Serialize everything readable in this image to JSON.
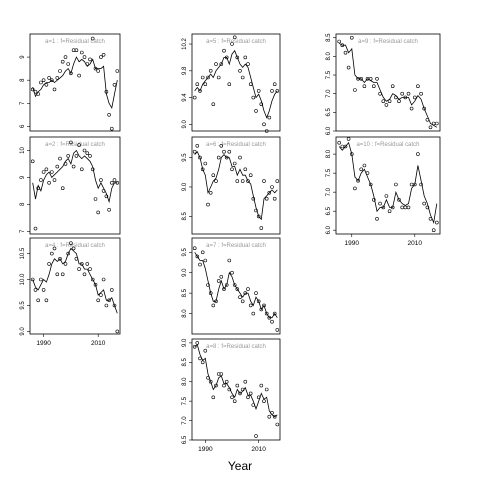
{
  "xlabel": "Year",
  "colors": {
    "line": "#000000",
    "frame": "#000000",
    "strip": "#999999"
  },
  "chart_data": {
    "type": "line",
    "xlabel": "Year",
    "xlim": [
      1985,
      2018
    ],
    "xticks": [
      1990,
      2010
    ],
    "panels": [
      {
        "label": "a=1  :  f=Residual catch",
        "ylim": [
          5.8,
          10.0
        ],
        "yticks": [
          6,
          7,
          8,
          9
        ],
        "x": [
          1986,
          1987,
          1988,
          1989,
          1990,
          1991,
          1992,
          1993,
          1994,
          1995,
          1996,
          1997,
          1998,
          1999,
          2000,
          2001,
          2002,
          2003,
          2004,
          2005,
          2006,
          2007,
          2008,
          2009,
          2010,
          2011,
          2012,
          2013,
          2014,
          2015,
          2016,
          2017
        ],
        "observed": [
          7.6,
          7.5,
          7.4,
          7.9,
          8.0,
          7.8,
          8.1,
          8.0,
          7.6,
          8.1,
          8.4,
          8.8,
          9.0,
          8.7,
          8.3,
          9.3,
          9.3,
          8.2,
          9.2,
          9.0,
          8.7,
          8.9,
          9.8,
          8.5,
          8.4,
          9.0,
          9.1,
          7.5,
          6.5,
          5.9,
          7.8,
          8.4
        ],
        "fitted": [
          7.7,
          7.3,
          7.5,
          7.6,
          7.8,
          7.9,
          7.9,
          8.0,
          7.9,
          8.0,
          8.1,
          8.2,
          8.4,
          8.5,
          8.3,
          8.7,
          9.0,
          8.8,
          8.9,
          8.8,
          8.6,
          8.7,
          8.9,
          8.5,
          8.5,
          8.5,
          8.6,
          7.4,
          7.0,
          6.8,
          7.4,
          8.0
        ]
      },
      {
        "label": "a=2  :  f=Residual catch",
        "ylim": [
          6.9,
          10.5
        ],
        "yticks": [
          7,
          8,
          9,
          10
        ],
        "x": [
          1986,
          1987,
          1988,
          1989,
          1990,
          1991,
          1992,
          1993,
          1994,
          1995,
          1996,
          1997,
          1998,
          1999,
          2000,
          2001,
          2002,
          2003,
          2004,
          2005,
          2006,
          2007,
          2008,
          2009,
          2010,
          2011,
          2012,
          2013,
          2014,
          2015,
          2016,
          2017
        ],
        "observed": [
          9.6,
          7.1,
          8.6,
          8.9,
          9.2,
          9.3,
          8.8,
          9.2,
          8.9,
          9.4,
          9.7,
          8.6,
          9.5,
          9.8,
          10.3,
          9.4,
          9.8,
          10.2,
          9.3,
          10.0,
          9.9,
          9.8,
          9.3,
          8.2,
          7.7,
          8.9,
          8.5,
          8.3,
          7.8,
          8.8,
          8.9,
          8.8
        ],
        "fitted": [
          8.8,
          8.2,
          8.7,
          8.5,
          8.9,
          9.1,
          9.2,
          9.0,
          9.1,
          9.2,
          9.3,
          9.4,
          9.6,
          9.7,
          9.5,
          9.9,
          10.0,
          9.8,
          9.7,
          9.8,
          9.7,
          9.6,
          9.4,
          8.9,
          8.6,
          8.8,
          8.6,
          8.4,
          8.1,
          8.6,
          8.8,
          8.8
        ]
      },
      {
        "label": "a=4  :  f=Residual catch",
        "ylim": [
          8.95,
          10.8
        ],
        "yticks": [
          9.0,
          9.5,
          10.0,
          10.5
        ],
        "x": [
          1986,
          1987,
          1988,
          1989,
          1990,
          1991,
          1992,
          1993,
          1994,
          1995,
          1996,
          1997,
          1998,
          1999,
          2000,
          2001,
          2002,
          2003,
          2004,
          2005,
          2006,
          2007,
          2008,
          2009,
          2010,
          2011,
          2012,
          2013,
          2014,
          2015,
          2016,
          2017
        ],
        "observed": [
          10.0,
          9.8,
          9.6,
          10.0,
          9.8,
          9.6,
          10.3,
          10.5,
          10.6,
          10.1,
          10.4,
          10.1,
          10.3,
          10.5,
          10.7,
          10.6,
          10.4,
          10.2,
          10.3,
          10.1,
          10.3,
          10.2,
          10.0,
          9.9,
          9.6,
          9.7,
          10.0,
          9.5,
          9.6,
          9.8,
          9.5,
          9.0
        ],
        "fitted": [
          10.0,
          9.85,
          9.8,
          9.9,
          10.0,
          9.95,
          10.1,
          10.3,
          10.4,
          10.35,
          10.4,
          10.3,
          10.35,
          10.5,
          10.6,
          10.55,
          10.5,
          10.3,
          10.3,
          10.2,
          10.2,
          10.1,
          10.0,
          9.9,
          9.7,
          9.75,
          9.8,
          9.6,
          9.6,
          9.65,
          9.5,
          9.35
        ]
      },
      {
        "label": "a=5  :  f=Residual catch",
        "ylim": [
          8.9,
          10.35
        ],
        "yticks": [
          9.0,
          9.4,
          9.8,
          10.2
        ],
        "x": [
          1986,
          1987,
          1988,
          1989,
          1990,
          1991,
          1992,
          1993,
          1994,
          1995,
          1996,
          1997,
          1998,
          1999,
          2000,
          2001,
          2002,
          2003,
          2004,
          2005,
          2006,
          2007,
          2008,
          2009,
          2010,
          2011,
          2012,
          2013,
          2014,
          2015,
          2016,
          2017
        ],
        "observed": [
          9.4,
          9.6,
          9.5,
          9.7,
          9.6,
          9.7,
          9.8,
          9.3,
          9.9,
          9.7,
          9.9,
          10.1,
          10.0,
          9.6,
          10.2,
          10.3,
          10.0,
          9.8,
          9.7,
          10.0,
          9.9,
          9.6,
          9.4,
          9.2,
          9.5,
          9.3,
          9.0,
          8.9,
          9.1,
          9.5,
          9.6,
          9.5
        ],
        "fitted": [
          9.5,
          9.55,
          9.5,
          9.6,
          9.65,
          9.7,
          9.75,
          9.7,
          9.8,
          9.85,
          9.9,
          10.0,
          10.0,
          9.9,
          10.05,
          10.1,
          10.0,
          9.9,
          9.85,
          9.9,
          9.85,
          9.7,
          9.55,
          9.4,
          9.45,
          9.35,
          9.2,
          9.1,
          9.2,
          9.35,
          9.45,
          9.5
        ]
      },
      {
        "label": "a=6  :  f=Residual catch",
        "ylim": [
          8.2,
          9.85
        ],
        "yticks": [
          8.5,
          9.0,
          9.5
        ],
        "x": [
          1986,
          1987,
          1988,
          1989,
          1990,
          1991,
          1992,
          1993,
          1994,
          1995,
          1996,
          1997,
          1998,
          1999,
          2000,
          2001,
          2002,
          2003,
          2004,
          2005,
          2006,
          2007,
          2008,
          2009,
          2010,
          2011,
          2012,
          2013,
          2014,
          2015,
          2016,
          2017
        ],
        "observed": [
          9.6,
          9.7,
          9.5,
          9.3,
          9.4,
          8.7,
          8.9,
          9.2,
          9.1,
          9.5,
          9.7,
          9.6,
          9.5,
          9.6,
          9.3,
          9.4,
          9.1,
          9.5,
          9.1,
          9.3,
          9.1,
          9.2,
          8.8,
          8.6,
          8.5,
          8.3,
          9.1,
          8.8,
          8.9,
          9.0,
          8.8,
          9.1
        ],
        "fitted": [
          9.55,
          9.6,
          9.5,
          9.3,
          9.2,
          8.9,
          9.0,
          9.1,
          9.15,
          9.3,
          9.5,
          9.55,
          9.5,
          9.5,
          9.35,
          9.35,
          9.2,
          9.3,
          9.2,
          9.2,
          9.1,
          9.05,
          8.85,
          8.65,
          8.5,
          8.45,
          8.8,
          8.85,
          8.9,
          8.95,
          8.9,
          8.95
        ]
      },
      {
        "label": "a=7  :  f=Residual catch",
        "ylim": [
          7.5,
          9.85
        ],
        "yticks": [
          8.0,
          8.5,
          9.0,
          9.5
        ],
        "x": [
          1986,
          1987,
          1988,
          1989,
          1990,
          1991,
          1992,
          1993,
          1994,
          1995,
          1996,
          1997,
          1998,
          1999,
          2000,
          2001,
          2002,
          2003,
          2004,
          2005,
          2006,
          2007,
          2008,
          2009,
          2010,
          2011,
          2012,
          2013,
          2014,
          2015,
          2016,
          2017
        ],
        "observed": [
          9.6,
          9.4,
          9.2,
          9.5,
          9.3,
          8.7,
          8.5,
          8.2,
          8.3,
          8.8,
          8.9,
          8.6,
          8.7,
          9.3,
          9.0,
          8.7,
          8.6,
          8.4,
          8.3,
          8.5,
          8.6,
          8.2,
          8.0,
          8.5,
          8.3,
          8.1,
          8.2,
          8.0,
          7.9,
          7.8,
          8.0,
          7.6
        ],
        "fitted": [
          9.5,
          9.4,
          9.3,
          9.3,
          9.1,
          8.8,
          8.5,
          8.3,
          8.3,
          8.6,
          8.8,
          8.6,
          8.7,
          9.0,
          8.9,
          8.7,
          8.6,
          8.5,
          8.4,
          8.5,
          8.5,
          8.3,
          8.2,
          8.4,
          8.3,
          8.1,
          8.2,
          8.0,
          7.9,
          7.9,
          8.0,
          7.9
        ]
      },
      {
        "label": "a=8  :  f=Residual catch",
        "ylim": [
          6.5,
          9.1
        ],
        "yticks": [
          6.5,
          7.0,
          7.5,
          8.0,
          8.5,
          9.0
        ],
        "x": [
          1986,
          1987,
          1988,
          1989,
          1990,
          1991,
          1992,
          1993,
          1994,
          1995,
          1996,
          1997,
          1998,
          1999,
          2000,
          2001,
          2002,
          2003,
          2004,
          2005,
          2006,
          2007,
          2008,
          2009,
          2010,
          2011,
          2012,
          2013,
          2014,
          2015,
          2016,
          2017
        ],
        "observed": [
          8.9,
          9.0,
          8.6,
          8.5,
          8.8,
          8.1,
          8.0,
          7.6,
          7.9,
          8.2,
          8.2,
          7.9,
          8.0,
          7.8,
          7.6,
          7.5,
          7.9,
          7.7,
          7.8,
          8.0,
          7.6,
          7.7,
          7.4,
          6.6,
          7.6,
          7.9,
          7.5,
          7.8,
          7.1,
          7.2,
          7.1,
          6.9
        ],
        "fitted": [
          8.9,
          8.95,
          8.7,
          8.55,
          8.6,
          8.2,
          8.0,
          7.8,
          7.9,
          8.1,
          8.15,
          7.95,
          7.95,
          7.85,
          7.7,
          7.6,
          7.8,
          7.7,
          7.75,
          7.85,
          7.65,
          7.65,
          7.5,
          7.3,
          7.5,
          7.7,
          7.55,
          7.6,
          7.25,
          7.15,
          7.1,
          7.15
        ]
      },
      {
        "label": "a=9  :  f=Residual catch",
        "ylim": [
          6.0,
          8.6
        ],
        "yticks": [
          6.0,
          6.5,
          7.0,
          7.5,
          8.0,
          8.5
        ],
        "x": [
          1986,
          1987,
          1988,
          1989,
          1990,
          1991,
          1992,
          1993,
          1994,
          1995,
          1996,
          1997,
          1998,
          1999,
          2000,
          2001,
          2002,
          2003,
          2004,
          2005,
          2006,
          2007,
          2008,
          2009,
          2010,
          2011,
          2012,
          2013,
          2014,
          2015,
          2016,
          2017
        ],
        "observed": [
          8.4,
          8.3,
          8.1,
          7.7,
          8.5,
          7.1,
          7.4,
          7.4,
          7.2,
          7.4,
          7.4,
          7.2,
          7.4,
          7.0,
          6.8,
          6.7,
          6.8,
          7.2,
          6.9,
          6.8,
          7.0,
          6.9,
          7.0,
          6.6,
          6.9,
          7.2,
          7.0,
          6.6,
          6.3,
          6.1,
          6.2,
          6.2
        ],
        "fitted": [
          8.35,
          8.3,
          8.3,
          8.1,
          8.2,
          7.5,
          7.4,
          7.4,
          7.3,
          7.4,
          7.35,
          7.3,
          7.3,
          7.1,
          6.9,
          6.8,
          6.85,
          7.0,
          6.95,
          6.85,
          6.9,
          6.9,
          6.9,
          6.7,
          6.8,
          6.95,
          6.85,
          6.6,
          6.4,
          6.2,
          6.15,
          6.1
        ]
      },
      {
        "label": "a=10  :  f=Residual catch",
        "ylim": [
          5.9,
          8.45
        ],
        "yticks": [
          6.0,
          6.5,
          7.0,
          7.5,
          8.0
        ],
        "x": [
          1986,
          1987,
          1988,
          1989,
          1990,
          1991,
          1992,
          1993,
          1994,
          1995,
          1996,
          1997,
          1998,
          1999,
          2000,
          2001,
          2002,
          2003,
          2004,
          2005,
          2006,
          2007,
          2008,
          2009,
          2010,
          2011,
          2012,
          2013,
          2014,
          2015,
          2016,
          2017
        ],
        "observed": [
          8.3,
          8.2,
          8.2,
          8.4,
          8.0,
          7.1,
          7.3,
          7.6,
          7.7,
          7.5,
          7.2,
          6.8,
          6.3,
          6.7,
          6.6,
          6.9,
          6.5,
          6.6,
          7.2,
          6.8,
          6.6,
          6.6,
          6.6,
          7.2,
          7.2,
          8.0,
          7.2,
          6.7,
          6.6,
          6.3,
          6.0,
          6.2
        ],
        "fitted": [
          8.2,
          8.1,
          8.2,
          8.3,
          8.0,
          7.4,
          7.3,
          7.5,
          7.6,
          7.4,
          7.2,
          6.9,
          6.5,
          6.6,
          6.6,
          6.8,
          6.6,
          6.6,
          7.0,
          6.8,
          6.7,
          6.65,
          6.7,
          7.1,
          7.2,
          7.7,
          7.3,
          6.9,
          6.7,
          6.4,
          6.2,
          6.7
        ]
      }
    ]
  }
}
